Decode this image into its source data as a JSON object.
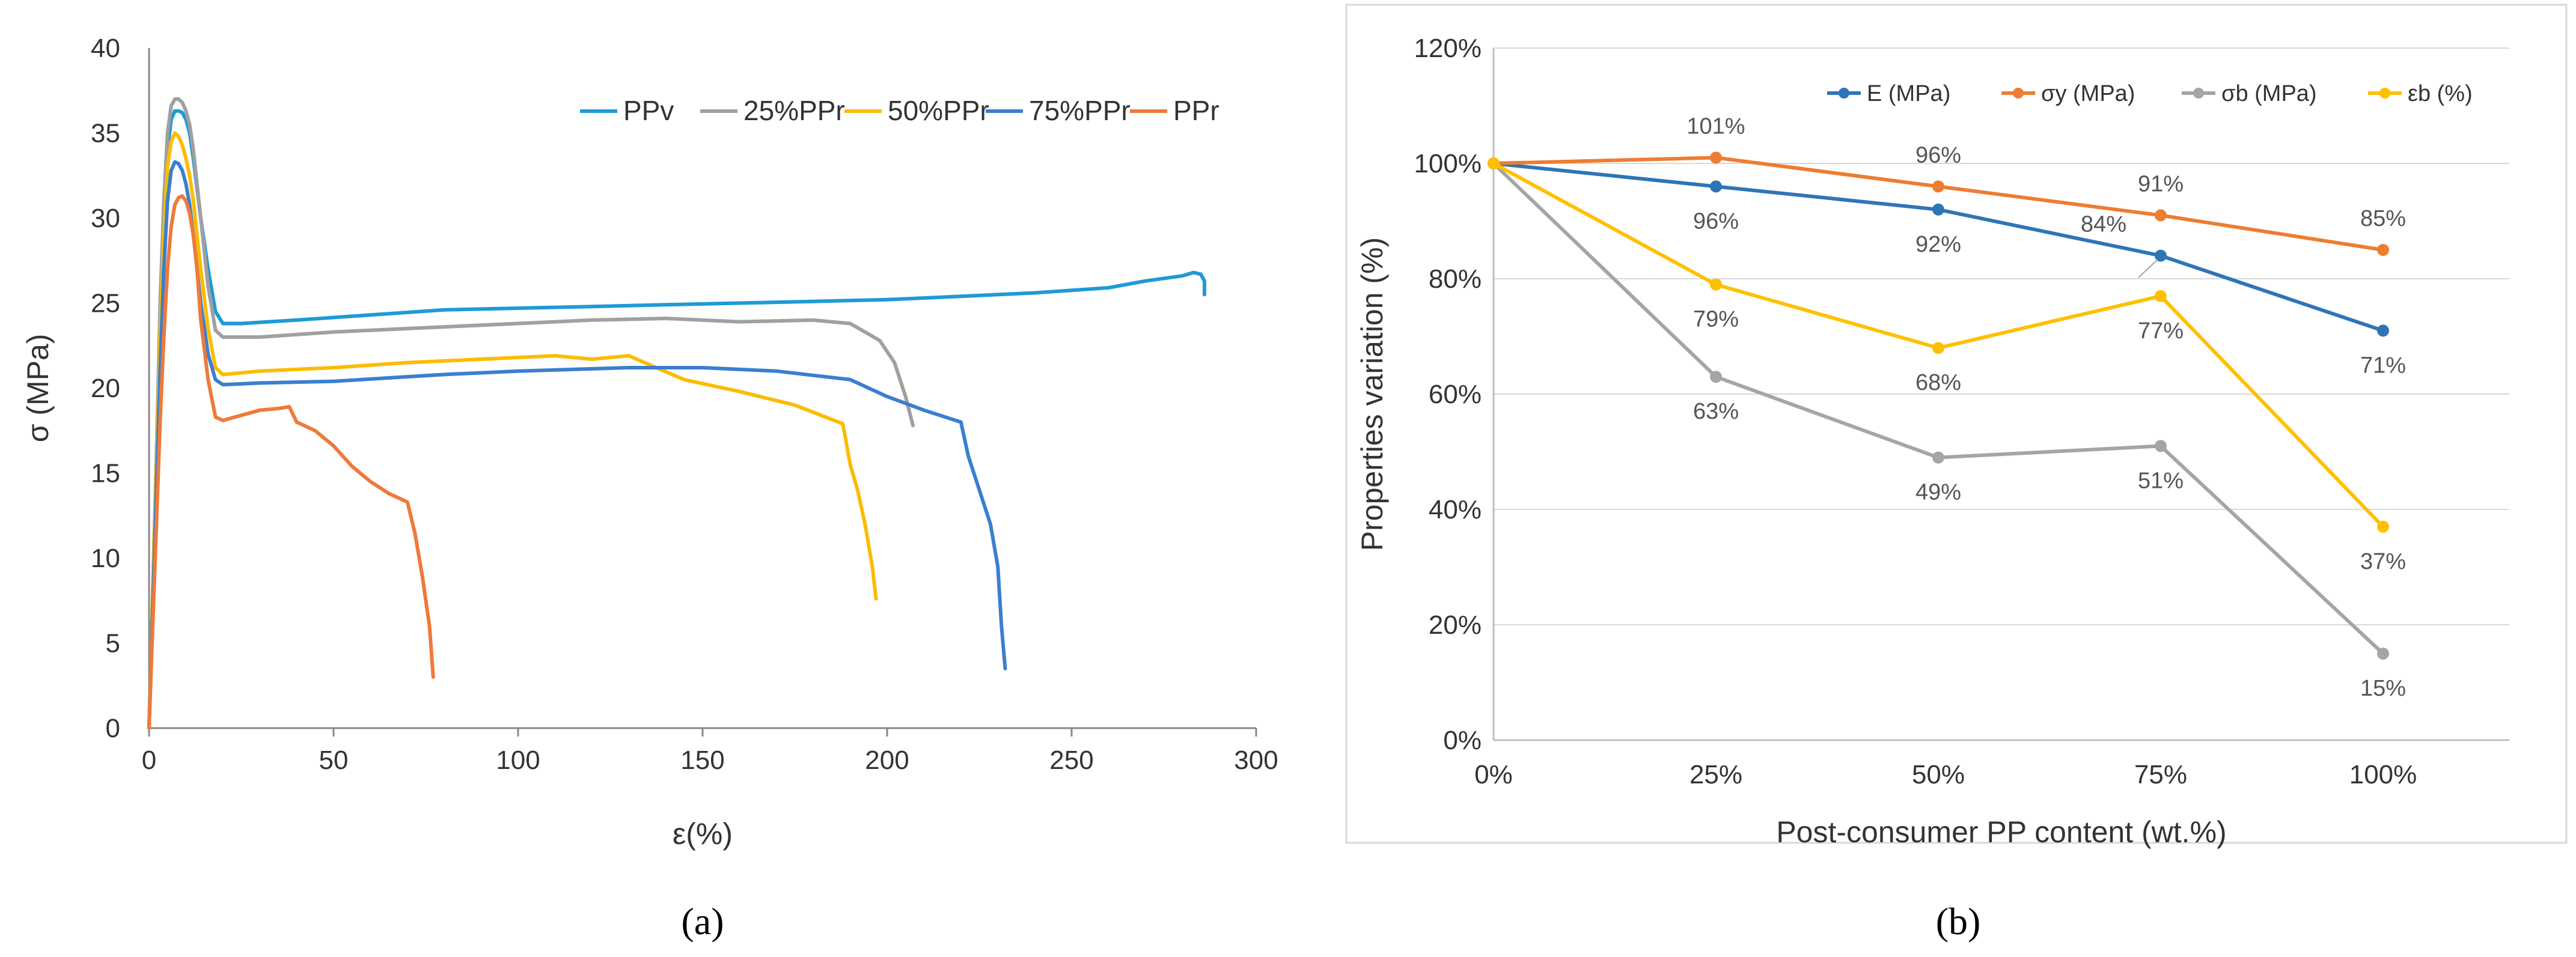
{
  "chart_data": [
    {
      "type": "line",
      "title": "",
      "panel_label": "(a)",
      "panel_label_letter": "a",
      "xlabel": "ε(%)",
      "ylabel": "σ (MPa)",
      "xlim": [
        0,
        300
      ],
      "ylim": [
        0,
        40
      ],
      "xticks": [
        0,
        50,
        100,
        150,
        200,
        250,
        300
      ],
      "yticks": [
        0,
        5,
        10,
        15,
        20,
        25,
        30,
        35,
        40
      ],
      "grid": false,
      "legend_position": "top-right",
      "series": [
        {
          "name": "PPv",
          "color": "#1f9ad6",
          "x": [
            0,
            1,
            2,
            3,
            4,
            5,
            6,
            7,
            8,
            9,
            10,
            11,
            12,
            14,
            16,
            18,
            20,
            25,
            40,
            60,
            80,
            100,
            120,
            140,
            160,
            180,
            200,
            220,
            240,
            260,
            270,
            280,
            283,
            285,
            286,
            286
          ],
          "y": [
            0,
            8,
            16,
            24,
            30,
            34,
            35.8,
            36.3,
            36.3,
            36.2,
            35.8,
            35,
            33.5,
            30,
            27,
            24.5,
            23.8,
            23.8,
            24,
            24.3,
            24.6,
            24.7,
            24.8,
            24.9,
            25.0,
            25.1,
            25.2,
            25.4,
            25.6,
            25.9,
            26.3,
            26.6,
            26.8,
            26.7,
            26.3,
            25.5
          ]
        },
        {
          "name": "25%PPr",
          "color": "#a0a0a0",
          "x": [
            0,
            1,
            2,
            3,
            4,
            5,
            6,
            7,
            8,
            9,
            10,
            11,
            12,
            14,
            16,
            18,
            20,
            30,
            50,
            80,
            100,
            120,
            140,
            160,
            180,
            190,
            198,
            202,
            205,
            207
          ],
          "y": [
            0,
            8,
            16,
            25,
            31,
            35,
            36.6,
            37,
            37,
            36.8,
            36.3,
            35.5,
            34,
            30,
            26,
            23.4,
            23.0,
            23.0,
            23.3,
            23.6,
            23.8,
            24.0,
            24.1,
            23.9,
            24.0,
            23.8,
            22.8,
            21.5,
            19.5,
            17.8
          ]
        },
        {
          "name": "50%PPr",
          "color": "#fbbc04",
          "x": [
            0,
            1,
            2,
            3,
            4,
            5,
            6,
            7,
            8,
            9,
            10,
            11,
            12,
            14,
            16,
            18,
            20,
            30,
            50,
            70,
            90,
            110,
            120,
            130,
            145,
            160,
            175,
            188,
            190,
            192,
            194,
            196,
            197
          ],
          "y": [
            0,
            8,
            15,
            23,
            29,
            33,
            34.5,
            35,
            34.8,
            34.3,
            33.5,
            32.5,
            31,
            27,
            23.5,
            21.2,
            20.8,
            21.0,
            21.2,
            21.5,
            21.7,
            21.9,
            21.7,
            21.9,
            20.5,
            19.8,
            19.0,
            17.9,
            15.5,
            14.0,
            12.0,
            9.5,
            7.6
          ]
        },
        {
          "name": "75%PPr",
          "color": "#3a7fd0",
          "x": [
            0,
            1,
            2,
            3,
            4,
            5,
            6,
            7,
            8,
            9,
            10,
            11,
            12,
            14,
            16,
            18,
            20,
            30,
            50,
            80,
            100,
            130,
            150,
            170,
            190,
            200,
            210,
            220,
            222,
            225,
            228,
            230,
            231,
            232
          ],
          "y": [
            0,
            7,
            14,
            21,
            27,
            31,
            32.8,
            33.3,
            33.2,
            32.8,
            32,
            30.8,
            29,
            25,
            22,
            20.5,
            20.2,
            20.3,
            20.4,
            20.8,
            21.0,
            21.2,
            21.2,
            21.0,
            20.5,
            19.5,
            18.7,
            18.0,
            16.0,
            14.0,
            12.0,
            9.5,
            6.0,
            3.5
          ]
        },
        {
          "name": "PPr",
          "color": "#ee7a3a",
          "x": [
            0,
            1,
            2,
            3,
            4,
            5,
            6,
            7,
            8,
            9,
            10,
            11,
            12,
            13,
            14,
            16,
            18,
            20,
            25,
            30,
            35,
            38,
            40,
            45,
            50,
            55,
            60,
            65,
            70,
            72,
            74,
            76,
            77
          ],
          "y": [
            0,
            6,
            12,
            18,
            23,
            27,
            29.5,
            30.8,
            31.2,
            31.3,
            31,
            30.3,
            29,
            27,
            24,
            20.5,
            18.3,
            18.1,
            18.4,
            18.7,
            18.8,
            18.9,
            18.0,
            17.5,
            16.6,
            15.4,
            14.5,
            13.8,
            13.3,
            11.5,
            9.0,
            6.0,
            3.0
          ]
        }
      ]
    },
    {
      "type": "line",
      "title": "",
      "panel_label": "(b)",
      "panel_label_letter": "b",
      "xlabel": "Post-consumer PP content (wt.%)",
      "ylabel": "Properties variation (%)",
      "ylim": [
        0,
        120
      ],
      "categories": [
        "0%",
        "25%",
        "50%",
        "75%",
        "100%"
      ],
      "yticks": [
        "0%",
        "20%",
        "40%",
        "60%",
        "80%",
        "100%",
        "120%"
      ],
      "grid": true,
      "legend_position": "top",
      "series": [
        {
          "name": "E (MPa)",
          "color": "#2e75b6",
          "values": [
            100,
            96,
            92,
            84,
            71
          ],
          "labels": [
            "",
            "96%",
            "92%",
            "84%",
            "71%"
          ]
        },
        {
          "name": "σy (MPa)",
          "color": "#ed7d31",
          "values": [
            100,
            101,
            96,
            91,
            85
          ],
          "labels": [
            "",
            "101%",
            "96%",
            "91%",
            "85%"
          ]
        },
        {
          "name": "σb (MPa)",
          "color": "#a5a5a5",
          "values": [
            100,
            63,
            49,
            51,
            15
          ],
          "labels": [
            "",
            "63%",
            "49%",
            "51%",
            "15%"
          ]
        },
        {
          "name": "εb (%)",
          "color": "#ffc000",
          "values": [
            100,
            79,
            68,
            77,
            37
          ],
          "labels": [
            "",
            "79%",
            "68%",
            "77%",
            "37%"
          ]
        }
      ]
    }
  ]
}
